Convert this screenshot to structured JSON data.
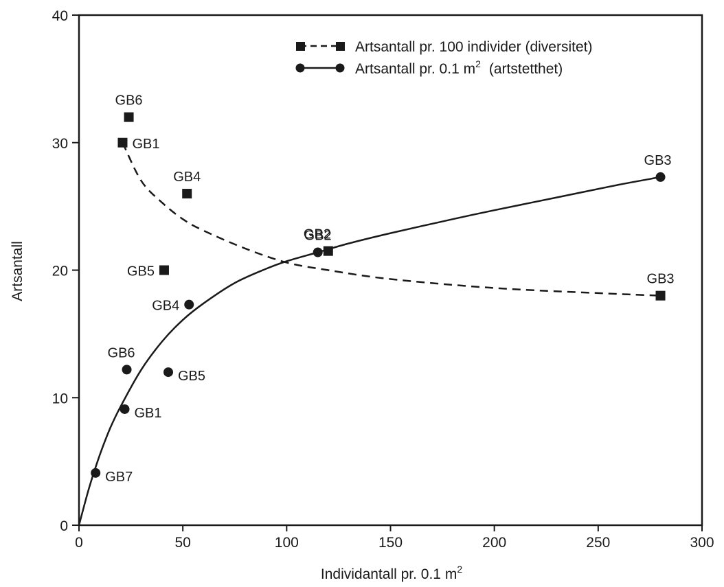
{
  "chart_data": {
    "type": "scatter",
    "title": "",
    "xlabel": "Individantall pr. 0.1 m",
    "xlabel_sup": "2",
    "ylabel": "Artsantall",
    "xlim": [
      0,
      300
    ],
    "ylim": [
      0,
      40
    ],
    "x_ticks": [
      "0",
      "50",
      "100",
      "150",
      "200",
      "250",
      "300"
    ],
    "y_ticks": [
      "0",
      "10",
      "20",
      "30",
      "40"
    ],
    "grid": false,
    "legend_position": "top-right",
    "colors": {
      "ink": "#1a1a1a"
    },
    "series": [
      {
        "name": "Artsantall pr. 100 individer (diversitet)",
        "marker": "square",
        "line": "dashed",
        "points": [
          {
            "label": "GB6",
            "x": 24,
            "y": 32
          },
          {
            "label": "GB1",
            "x": 21,
            "y": 30
          },
          {
            "label": "GB4",
            "x": 52,
            "y": 26
          },
          {
            "label": "GB5",
            "x": 41,
            "y": 20
          },
          {
            "label": "GB2",
            "x": 120,
            "y": 21.5
          },
          {
            "label": "GB3",
            "x": 280,
            "y": 18
          }
        ],
        "fit_curve": [
          [
            21,
            30
          ],
          [
            30,
            27
          ],
          [
            40,
            25.3
          ],
          [
            50,
            24
          ],
          [
            60,
            23.1
          ],
          [
            80,
            21.7
          ],
          [
            100,
            20.6
          ],
          [
            120,
            20
          ],
          [
            150,
            19.3
          ],
          [
            200,
            18.6
          ],
          [
            250,
            18.2
          ],
          [
            280,
            18
          ]
        ]
      },
      {
        "name": "Artsantall pr. 0.1 m",
        "name_sup": "2",
        "name_suffix": "(artstetthet)",
        "marker": "circle",
        "line": "solid",
        "points": [
          {
            "label": "GB3",
            "x": 280,
            "y": 27.3
          },
          {
            "label": "GB2",
            "x": 115,
            "y": 21.4
          },
          {
            "label": "GB4",
            "x": 53,
            "y": 17.3
          },
          {
            "label": "GB6",
            "x": 23,
            "y": 12.2
          },
          {
            "label": "GB5",
            "x": 43,
            "y": 12
          },
          {
            "label": "GB1",
            "x": 22,
            "y": 9.1
          },
          {
            "label": "GB7",
            "x": 8,
            "y": 4.1
          }
        ],
        "fit_curve": [
          [
            0,
            0
          ],
          [
            5,
            3
          ],
          [
            10,
            5.5
          ],
          [
            15,
            7.6
          ],
          [
            20,
            9.3
          ],
          [
            30,
            12.2
          ],
          [
            40,
            14.4
          ],
          [
            50,
            16.1
          ],
          [
            60,
            17.4
          ],
          [
            75,
            19
          ],
          [
            90,
            20.1
          ],
          [
            100,
            20.7
          ],
          [
            115,
            21.4
          ],
          [
            130,
            22.1
          ],
          [
            150,
            22.9
          ],
          [
            180,
            24
          ],
          [
            200,
            24.7
          ],
          [
            230,
            25.7
          ],
          [
            260,
            26.7
          ],
          [
            280,
            27.3
          ]
        ]
      }
    ]
  }
}
